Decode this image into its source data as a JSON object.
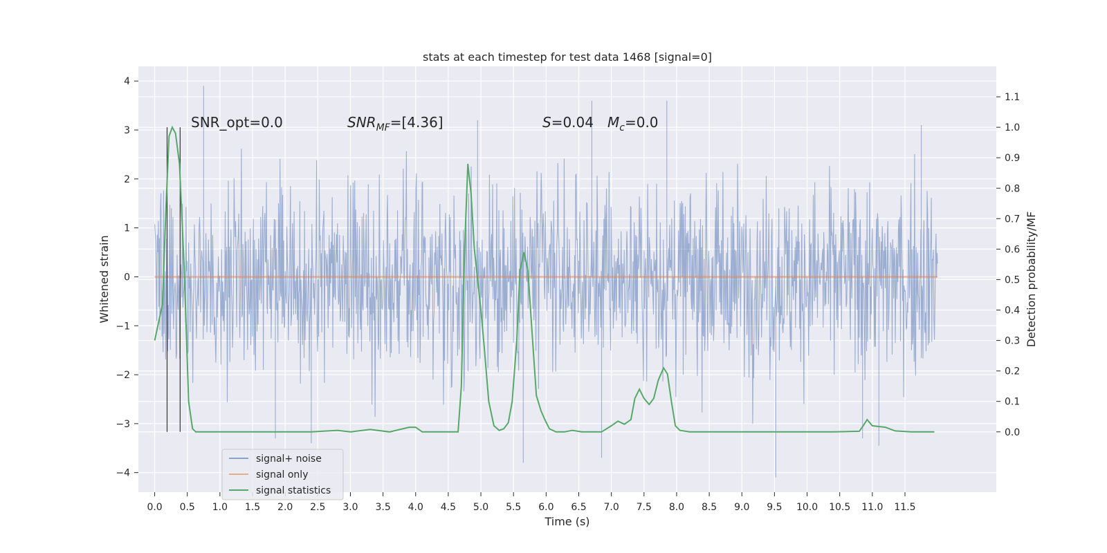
{
  "chart_data": {
    "type": "line",
    "title": "stats at each timestep for test data 1468 [signal=0]",
    "xlabel": "Time (s)",
    "ylabel": "Whitened strain",
    "y2label": "Detection probability/MF",
    "xlim": [
      -0.25,
      12.9
    ],
    "ylim": [
      -4.4,
      4.3
    ],
    "y2lim": [
      -0.198,
      1.2
    ],
    "grid": true,
    "x_ticks": [
      "0.0",
      "0.5",
      "1.0",
      "1.5",
      "2.0",
      "2.5",
      "3.0",
      "3.5",
      "4.0",
      "4.5",
      "5.0",
      "5.5",
      "6.0",
      "6.5",
      "7.0",
      "7.5",
      "8.0",
      "8.5",
      "9.0",
      "9.5",
      "10.0",
      "10.5",
      "11.0",
      "11.5"
    ],
    "y_ticks": [
      "4",
      "3",
      "2",
      "1",
      "0",
      "−1",
      "−2",
      "−3",
      "−4"
    ],
    "y2_ticks": [
      "1.1",
      "1.0",
      "0.9",
      "0.8",
      "0.7",
      "0.6",
      "0.5",
      "0.4",
      "0.3",
      "0.2",
      "0.1",
      "0.0"
    ],
    "annotations": [
      {
        "text": "SNR_opt=0.0",
        "x": 0.2
      },
      {
        "text": "SNR",
        "sub": "MF",
        "after": "=[4.36]",
        "italic": true,
        "x": 2.6
      },
      {
        "text": "S",
        "after": "=0.04",
        "italic": true,
        "x": 5.6
      },
      {
        "text": "M",
        "sub": "c",
        "after": "=0.0",
        "italic": true,
        "x": 6.6
      }
    ],
    "vlines_x": [
      0.19,
      0.39
    ],
    "legend": {
      "placement": "lower-left",
      "entries": [
        "signal+ noise",
        "signal only",
        "signal statistics"
      ]
    },
    "colors": {
      "noise": "#4c72b0",
      "signal": "#dd8452",
      "stats": "#55a868",
      "background": "#eaeaf2",
      "grid": "#ffffff"
    },
    "noise": {
      "x_range": [
        0.0,
        12.0
      ],
      "envelope": [
        -3.0,
        3.0
      ],
      "peaks": [
        {
          "x": 0.75,
          "y": 3.9
        },
        {
          "x": 6.7,
          "y": 3.6
        },
        {
          "x": 7.85,
          "y": 3.6
        },
        {
          "x": 4.95,
          "y": 3.2
        },
        {
          "x": 11.75,
          "y": 3.1
        },
        {
          "x": 9.52,
          "y": -4.1
        },
        {
          "x": 5.65,
          "y": -3.8
        },
        {
          "x": 6.85,
          "y": -3.7
        },
        {
          "x": 11.1,
          "y": -3.45
        },
        {
          "x": 2.4,
          "y": -3.4
        },
        {
          "x": 1.85,
          "y": -3.3
        },
        {
          "x": 10.85,
          "y": -3.3
        }
      ]
    },
    "signal_only": {
      "x": [
        0.0,
        12.0
      ],
      "y": [
        0.0,
        0.0
      ]
    },
    "series": [
      {
        "name": "signal statistics",
        "axis": "right",
        "x": [
          0.0,
          0.12,
          0.17,
          0.22,
          0.27,
          0.32,
          0.38,
          0.45,
          0.52,
          0.58,
          0.63,
          0.72,
          1.2,
          1.8,
          2.4,
          2.8,
          3.0,
          3.3,
          3.6,
          3.9,
          4.0,
          4.1,
          4.25,
          4.5,
          4.65,
          4.7,
          4.75,
          4.8,
          4.85,
          4.9,
          4.95,
          5.0,
          5.05,
          5.12,
          5.2,
          5.28,
          5.35,
          5.42,
          5.48,
          5.55,
          5.6,
          5.66,
          5.72,
          5.78,
          5.85,
          5.92,
          5.98,
          6.05,
          6.15,
          6.28,
          6.4,
          6.55,
          6.7,
          6.85,
          7.0,
          7.1,
          7.2,
          7.3,
          7.36,
          7.43,
          7.5,
          7.58,
          7.65,
          7.72,
          7.8,
          7.86,
          7.92,
          7.98,
          8.05,
          8.2,
          8.6,
          9.2,
          9.8,
          10.4,
          10.8,
          10.86,
          10.92,
          11.0,
          11.2,
          11.35,
          11.6,
          11.95
        ],
        "y": [
          0.3,
          0.42,
          0.72,
          0.97,
          1.0,
          0.98,
          0.88,
          0.55,
          0.1,
          0.01,
          0.0,
          0.0,
          0.0,
          0.0,
          0.0,
          0.005,
          0.0,
          0.008,
          0.0,
          0.015,
          0.015,
          0.0,
          0.0,
          0.0,
          0.0,
          0.15,
          0.6,
          0.88,
          0.78,
          0.6,
          0.5,
          0.4,
          0.28,
          0.1,
          0.02,
          0.005,
          0.01,
          0.03,
          0.1,
          0.3,
          0.53,
          0.59,
          0.53,
          0.34,
          0.12,
          0.07,
          0.04,
          0.01,
          0.0,
          0.0,
          0.005,
          0.0,
          0.0,
          0.0,
          0.02,
          0.035,
          0.025,
          0.04,
          0.11,
          0.14,
          0.11,
          0.09,
          0.11,
          0.17,
          0.21,
          0.19,
          0.1,
          0.02,
          0.005,
          0.0,
          0.0,
          0.0,
          0.0,
          0.0,
          0.002,
          0.02,
          0.04,
          0.02,
          0.015,
          0.003,
          0.0,
          0.0
        ]
      }
    ]
  }
}
